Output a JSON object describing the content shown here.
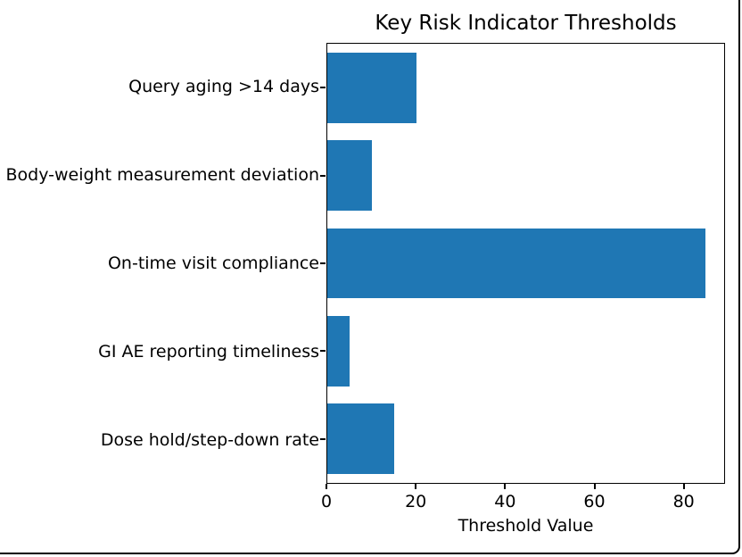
{
  "frame": {
    "background_color": "#ffffff",
    "edge_color": "#000000"
  },
  "chart_data": {
    "type": "bar",
    "orientation": "horizontal",
    "title": "Key Risk Indicator Thresholds",
    "xlabel": "Threshold Value",
    "ylabel": "",
    "categories": [
      "Query aging >14 days",
      "Body-weight measurement deviation",
      "On-time visit compliance",
      "GI AE reporting timeliness",
      "Dose hold/step-down rate"
    ],
    "values": [
      20,
      10,
      85,
      5,
      15
    ],
    "xticks": [
      0,
      20,
      40,
      60,
      80
    ],
    "xlim": [
      0,
      89.25
    ],
    "bar_color": "#1f77b4",
    "axis_color": "#000000",
    "grid": false,
    "legend": "none"
  }
}
